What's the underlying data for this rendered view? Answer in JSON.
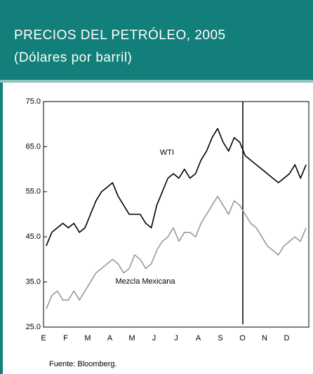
{
  "chart_data": {
    "type": "line",
    "title": "PRECIOS DEL PETRÓLEO, 2005",
    "subtitle": "(Dólares por barril)",
    "source": "Fuente:  Bloomberg.",
    "categories": [
      "E",
      null,
      null,
      null,
      "F",
      null,
      null,
      null,
      "M",
      null,
      null,
      null,
      "A",
      null,
      null,
      null,
      "M",
      null,
      null,
      null,
      "J",
      null,
      null,
      null,
      "J",
      null,
      null,
      null,
      "A",
      null,
      null,
      null,
      "S",
      null,
      null,
      null,
      "O",
      null,
      null,
      null,
      "N",
      null,
      null,
      null,
      "D",
      null,
      null,
      null
    ],
    "series": [
      {
        "name": "WTI",
        "color": "#000000",
        "values": [
          43,
          46,
          47,
          48,
          47,
          48,
          46,
          47,
          50,
          53,
          55,
          56,
          57,
          54,
          52,
          50,
          50,
          50,
          48,
          47,
          52,
          55,
          58,
          59,
          58,
          60,
          58,
          59,
          62,
          64,
          67,
          69,
          66,
          64,
          67,
          66,
          63,
          62,
          61,
          60,
          59,
          58,
          57,
          58,
          59,
          61,
          58,
          61
        ]
      },
      {
        "name": "Mezcla Mexicana",
        "color": "#999999",
        "values": [
          29,
          32,
          33,
          31,
          31,
          33,
          31,
          33,
          35,
          37,
          38,
          39,
          40,
          39,
          37,
          38,
          41,
          40,
          38,
          39,
          42,
          44,
          45,
          47,
          44,
          46,
          46,
          45,
          48,
          50,
          52,
          54,
          52,
          50,
          53,
          52,
          50,
          48,
          47,
          45,
          43,
          42,
          41,
          43,
          44,
          45,
          44,
          47
        ]
      }
    ],
    "ylim": [
      25,
      75
    ],
    "yticks": [
      {
        "value": 25,
        "label": "25.0"
      },
      {
        "value": 35,
        "label": "35.0"
      },
      {
        "value": 45,
        "label": "45.0"
      },
      {
        "value": 55,
        "label": "55.0"
      },
      {
        "value": 65,
        "label": "65.0"
      },
      {
        "value": 75,
        "label": "75.0"
      }
    ]
  }
}
